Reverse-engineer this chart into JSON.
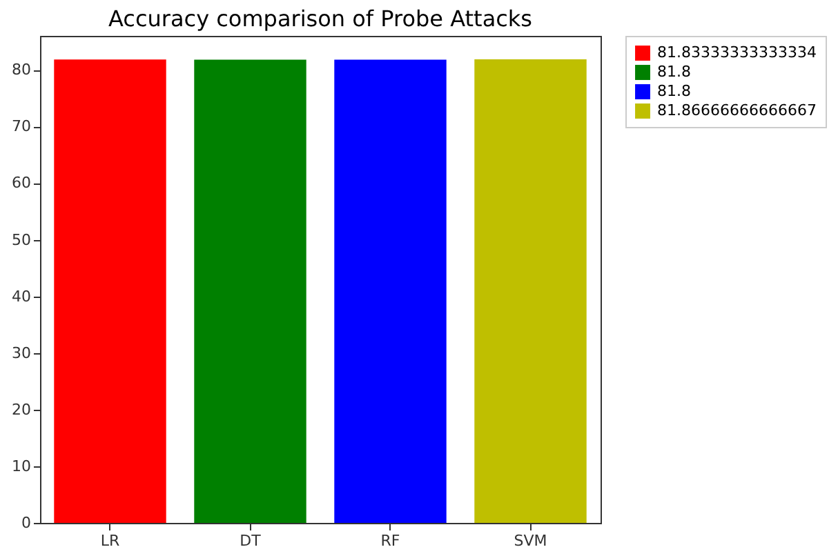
{
  "chart_data": {
    "type": "bar",
    "title": "Accuracy comparison of Probe Attacks",
    "categories": [
      "LR",
      "DT",
      "RF",
      "SVM"
    ],
    "series": [
      {
        "name": "81.83333333333334",
        "color": "#ff0000",
        "values": [
          81.83333333333334,
          null,
          null,
          null
        ]
      },
      {
        "name": "81.8",
        "color": "#008000",
        "values": [
          null,
          81.8,
          null,
          null
        ]
      },
      {
        "name": "81.8",
        "color": "#0000ff",
        "values": [
          null,
          null,
          81.8,
          null
        ]
      },
      {
        "name": "81.86666666666667",
        "color": "#bfbf00",
        "values": [
          null,
          null,
          null,
          81.86666666666667
        ]
      }
    ],
    "ylim": [
      0,
      86
    ],
    "yticks": [
      0,
      10,
      20,
      30,
      40,
      50,
      60,
      70,
      80
    ],
    "grid": false,
    "legend": "top right"
  }
}
